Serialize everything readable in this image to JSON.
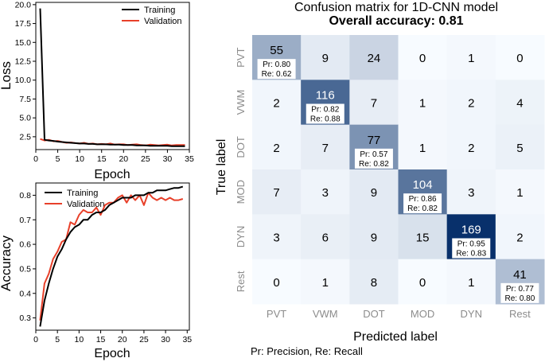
{
  "chart_data": [
    {
      "type": "line",
      "xlabel": "Epoch",
      "ylabel": "Loss",
      "xlim": [
        0,
        35
      ],
      "ylim": [
        0.8,
        20.3
      ],
      "xticks": [
        "0",
        "5",
        "10",
        "15",
        "20",
        "25",
        "30",
        "35"
      ],
      "yticks": [
        "2.5",
        "5.0",
        "7.5",
        "10.0",
        "12.5",
        "15.0",
        "17.5",
        "20.0"
      ],
      "legend_position": "top-right",
      "series": [
        {
          "name": "Training",
          "color": "#000000",
          "x": [
            1,
            2,
            3,
            4,
            5,
            6,
            7,
            8,
            9,
            10,
            11,
            12,
            13,
            14,
            15,
            16,
            17,
            18,
            19,
            20,
            21,
            22,
            23,
            24,
            25,
            26,
            27,
            28,
            29,
            30,
            31,
            32,
            33,
            34
          ],
          "y": [
            19.5,
            2.1,
            2.0,
            1.95,
            1.85,
            1.8,
            1.75,
            1.7,
            1.65,
            1.6,
            1.6,
            1.55,
            1.55,
            1.5,
            1.5,
            1.5,
            1.45,
            1.45,
            1.45,
            1.4,
            1.4,
            1.4,
            1.35,
            1.35,
            1.35,
            1.3,
            1.3,
            1.3,
            1.3,
            1.3,
            1.25,
            1.25,
            1.25,
            1.25
          ]
        },
        {
          "name": "Validation",
          "color": "#e8402a",
          "x": [
            1,
            2,
            3,
            4,
            5,
            6,
            7,
            8,
            9,
            10,
            11,
            12,
            13,
            14,
            15,
            16,
            17,
            18,
            19,
            20,
            21,
            22,
            23,
            24,
            25,
            26,
            27,
            28,
            29,
            30,
            31,
            32,
            33,
            34
          ],
          "y": [
            2.2,
            2.0,
            2.1,
            1.9,
            1.95,
            1.8,
            1.7,
            1.75,
            1.65,
            1.6,
            1.7,
            1.55,
            1.6,
            1.5,
            1.55,
            1.5,
            1.6,
            1.45,
            1.5,
            1.5,
            1.4,
            1.45,
            1.5,
            1.4,
            1.35,
            1.45,
            1.4,
            1.35,
            1.4,
            1.45,
            1.35,
            1.4,
            1.4,
            1.4
          ]
        }
      ]
    },
    {
      "type": "line",
      "xlabel": "Epoch",
      "ylabel": "Accuracy",
      "xlim": [
        0,
        35.5
      ],
      "ylim": [
        0.25,
        0.85
      ],
      "xticks": [
        "0",
        "5",
        "10",
        "15",
        "20",
        "25",
        "30",
        "35"
      ],
      "yticks": [
        "0.3",
        "0.4",
        "0.5",
        "0.6",
        "0.7",
        "0.8"
      ],
      "legend_position": "top-left",
      "series": [
        {
          "name": "Training",
          "color": "#000000",
          "x": [
            1,
            2,
            3,
            4,
            5,
            6,
            7,
            8,
            9,
            10,
            11,
            12,
            13,
            14,
            15,
            16,
            17,
            18,
            19,
            20,
            21,
            22,
            23,
            24,
            25,
            26,
            27,
            28,
            29,
            30,
            31,
            32,
            33,
            34
          ],
          "y": [
            0.265,
            0.37,
            0.44,
            0.5,
            0.55,
            0.58,
            0.62,
            0.65,
            0.67,
            0.68,
            0.7,
            0.7,
            0.72,
            0.73,
            0.73,
            0.74,
            0.76,
            0.77,
            0.78,
            0.79,
            0.79,
            0.79,
            0.8,
            0.8,
            0.8,
            0.81,
            0.81,
            0.82,
            0.82,
            0.82,
            0.825,
            0.83,
            0.83,
            0.835
          ]
        },
        {
          "name": "Validation",
          "color": "#e8402a",
          "x": [
            1,
            2,
            3,
            4,
            5,
            6,
            7,
            8,
            9,
            10,
            11,
            12,
            13,
            14,
            15,
            16,
            17,
            18,
            19,
            20,
            21,
            22,
            23,
            24,
            25,
            26,
            27,
            28,
            29,
            30,
            31,
            32,
            33,
            34
          ],
          "y": [
            0.29,
            0.44,
            0.48,
            0.54,
            0.57,
            0.61,
            0.62,
            0.69,
            0.68,
            0.72,
            0.74,
            0.73,
            0.73,
            0.75,
            0.72,
            0.76,
            0.77,
            0.77,
            0.79,
            0.8,
            0.77,
            0.8,
            0.78,
            0.8,
            0.76,
            0.81,
            0.79,
            0.78,
            0.79,
            0.78,
            0.79,
            0.78,
            0.78,
            0.785
          ]
        }
      ]
    },
    {
      "type": "heatmap",
      "title": "Confusion matrix for 1D-CNN model",
      "subtitle": "Overall accuracy: 0.81",
      "xlabel": "Predicted label",
      "ylabel": "True label",
      "row_labels": [
        "PVT",
        "VWM",
        "DOT",
        "MOD",
        "DYN",
        "Rest"
      ],
      "col_labels": [
        "PVT",
        "VWM",
        "DOT",
        "MOD",
        "DYN",
        "Rest"
      ],
      "values": [
        [
          55,
          9,
          24,
          0,
          1,
          0
        ],
        [
          2,
          116,
          7,
          1,
          2,
          4
        ],
        [
          2,
          7,
          77,
          1,
          2,
          5
        ],
        [
          7,
          3,
          9,
          104,
          3,
          1
        ],
        [
          3,
          6,
          9,
          15,
          169,
          2
        ],
        [
          0,
          1,
          8,
          0,
          1,
          41
        ]
      ],
      "diagonal_annotations": [
        {
          "pr": "Pr: 0.80",
          "re": "Re: 0.62"
        },
        {
          "pr": "Pr: 0.82",
          "re": "Re: 0.88"
        },
        {
          "pr": "Pr: 0.57",
          "re": "Re: 0.82"
        },
        {
          "pr": "Pr: 0.86",
          "re": "Re: 0.82"
        },
        {
          "pr": "Pr: 0.95",
          "re": "Re: 0.83"
        },
        {
          "pr": "Pr: 0.77",
          "re": "Re: 0.80"
        }
      ],
      "footnote": "Pr: Precision, Re: Recall",
      "colormap": {
        "low": "#f7fbff",
        "high": "#08306b"
      }
    }
  ]
}
